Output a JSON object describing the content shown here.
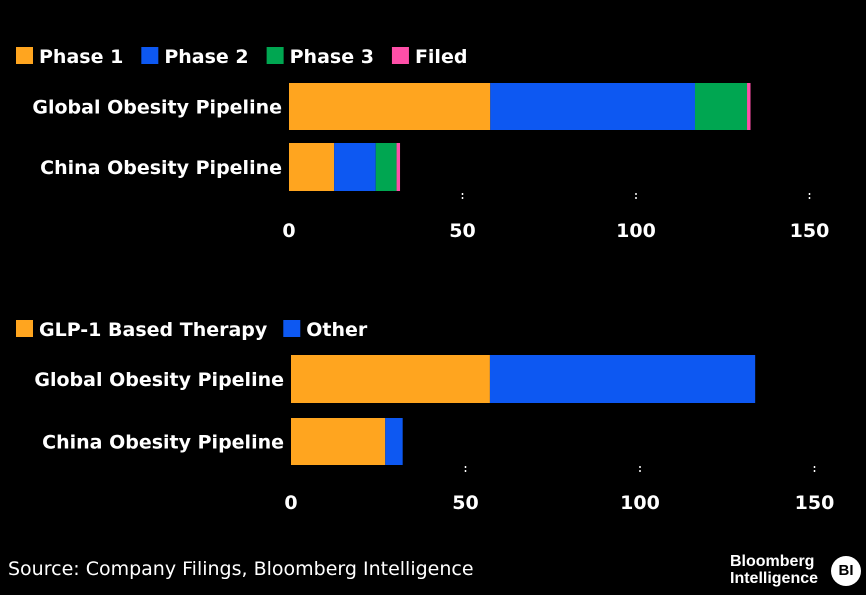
{
  "chart_data": [
    {
      "type": "bar",
      "orientation": "horizontal",
      "stacked": true,
      "categories": [
        "Global Obesity Pipeline",
        "China Obesity Pipeline"
      ],
      "series": [
        {
          "name": "Phase 1",
          "color": "#FFA51F",
          "values": [
            58,
            13
          ]
        },
        {
          "name": "Phase 2",
          "color": "#0D58F2",
          "values": [
            59,
            12
          ]
        },
        {
          "name": "Phase 3",
          "color": "#00A651",
          "values": [
            15,
            6
          ]
        },
        {
          "name": "Filed",
          "color": "#FF4FA8",
          "values": [
            1,
            1
          ]
        }
      ],
      "xlim": [
        0,
        150
      ],
      "xticks": [
        0,
        50,
        100,
        150
      ],
      "legend_position": "top-left",
      "grid": false
    },
    {
      "type": "bar",
      "orientation": "horizontal",
      "stacked": true,
      "categories": [
        "Global Obesity Pipeline",
        "China Obesity Pipeline"
      ],
      "series": [
        {
          "name": "GLP-1 Based Therapy",
          "color": "#FFA51F",
          "values": [
            57,
            27
          ]
        },
        {
          "name": "Other",
          "color": "#0D58F2",
          "values": [
            76,
            5
          ]
        }
      ],
      "xlim": [
        0,
        150
      ],
      "xticks": [
        0,
        50,
        100,
        150
      ],
      "legend_position": "top-left",
      "grid": false
    }
  ],
  "source": "Source: Company Filings, Bloomberg Intelligence",
  "brand": {
    "line1": "Bloomberg",
    "line2": "Intelligence",
    "badge": "BI"
  }
}
